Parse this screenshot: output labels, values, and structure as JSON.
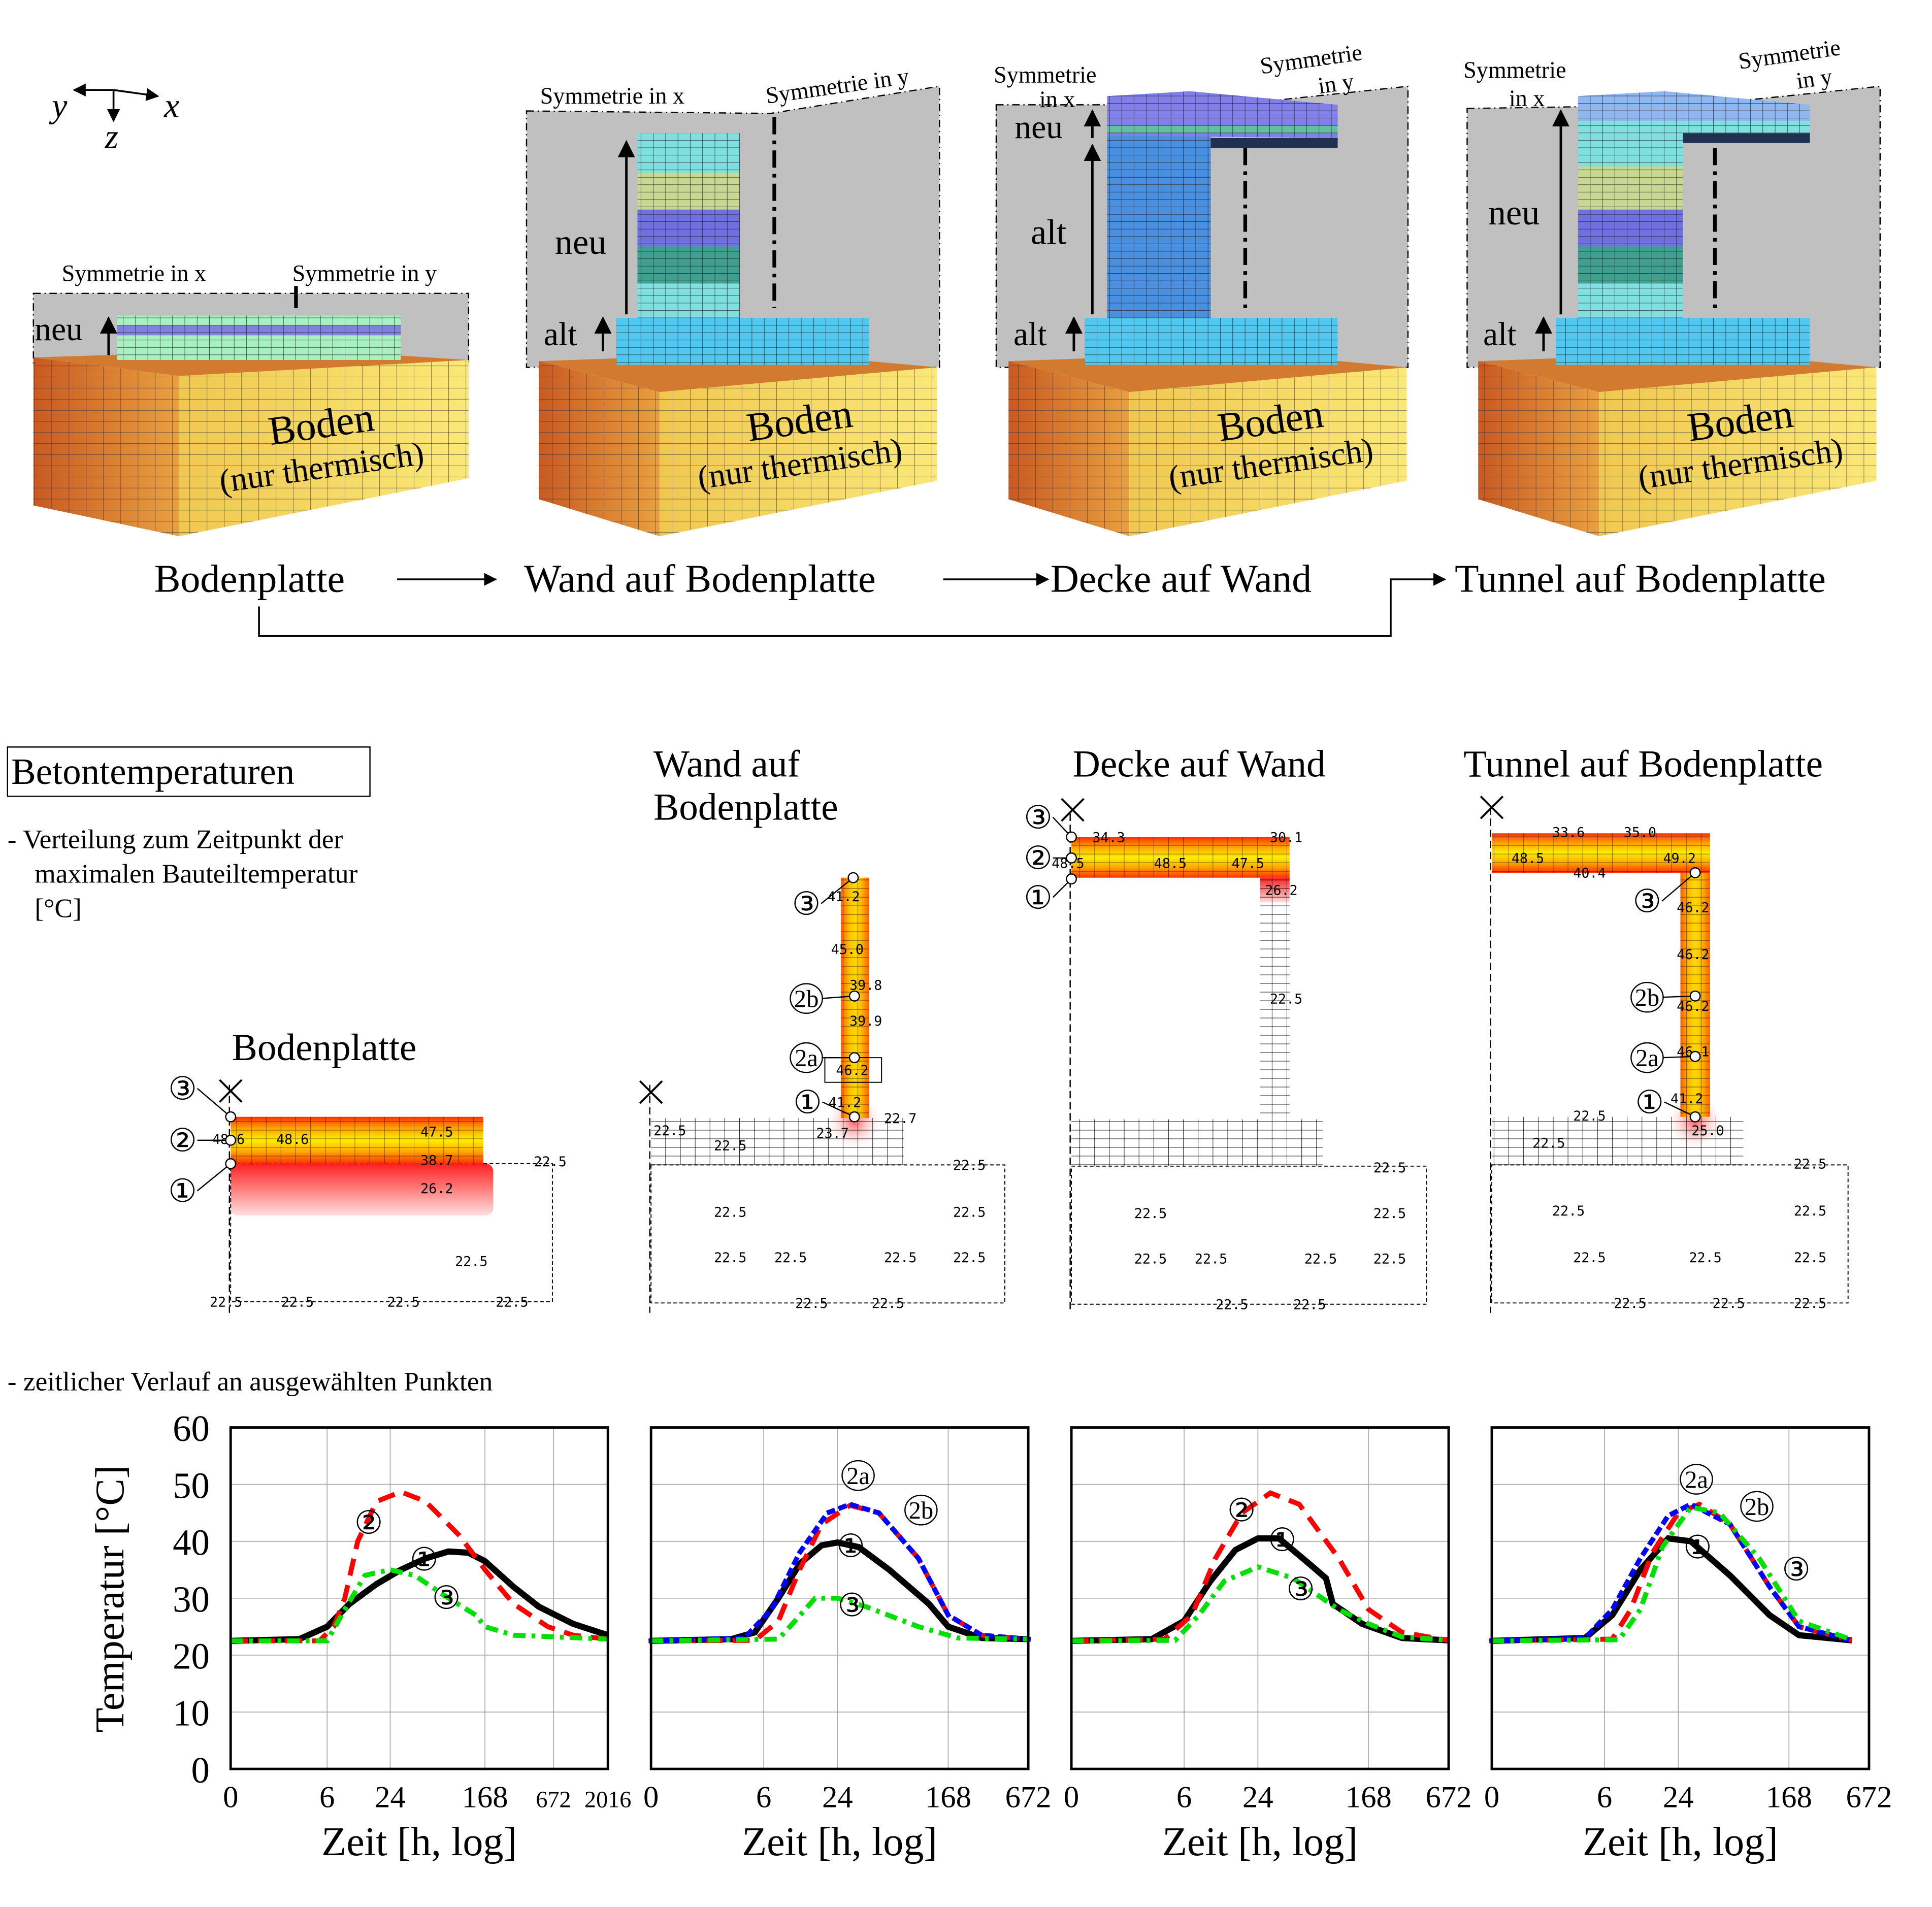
{
  "axes_glyph": {
    "x": "x",
    "y": "y",
    "z": "z"
  },
  "stages": [
    {
      "sym_x": "Symmetrie in x",
      "sym_y": "Symmetrie in y",
      "neu": "neu",
      "boden": "Boden",
      "boden_sub": "(nur thermisch)"
    },
    {
      "sym_x": "Symmetrie in x",
      "sym_y": "Symmetrie in y",
      "neu": "neu",
      "alt": "alt",
      "boden": "Boden",
      "boden_sub": "(nur thermisch)"
    },
    {
      "sym_x_lines": [
        "Symmetrie",
        "in x"
      ],
      "sym_y_lines": [
        "Symmetrie",
        "in y"
      ],
      "neu": "neu",
      "alt": "alt",
      "alt2": "alt",
      "boden": "Boden",
      "boden_sub": "(nur thermisch)"
    },
    {
      "sym_x_lines": [
        "Symmetrie",
        "in x"
      ],
      "sym_y_lines": [
        "Symmetrie",
        "in y"
      ],
      "neu": "neu",
      "alt": "alt",
      "boden": "Boden",
      "boden_sub": "(nur thermisch)"
    }
  ],
  "process": [
    "Bodenplatte",
    "Wand auf Bodenplatte",
    "Decke auf Wand",
    "Tunnel auf Bodenplatte"
  ],
  "section": {
    "title": "Betontemperaturen",
    "dist_text": [
      "- Verteilung zum Zeitpunkt der",
      "maximalen Bauteiltemperatur",
      "[°C]"
    ],
    "time_text": "- zeitlicher Verlauf an ausgewählten Punkten"
  },
  "distributions": [
    {
      "title": [
        "Bodenplatte"
      ],
      "points": [
        "③",
        "②",
        "①"
      ],
      "values": [
        "48.6",
        "48.6",
        "47.5",
        "38.7",
        "26.2",
        "22.5",
        "22.5",
        "22.5",
        "22.5",
        "22.5",
        "22.5"
      ]
    },
    {
      "title": [
        "Wand auf",
        "Bodenplatte"
      ],
      "points": [
        "③",
        "2b",
        "2a",
        "①"
      ],
      "values": [
        "41.2",
        "45.0",
        "39.8",
        "39.9",
        "46.2",
        "41.2",
        "22.7",
        "23.7",
        "22.5",
        "22.5",
        "22.5",
        "22.5",
        "22.5",
        "22.5",
        "22.5",
        "22.5",
        "22.5",
        "22.5",
        "22.5"
      ]
    },
    {
      "title": [
        "Decke auf Wand"
      ],
      "points": [
        "③",
        "②",
        "①"
      ],
      "values": [
        "34.3",
        "30.1",
        "48.5",
        "48.5",
        "47.5",
        "26.2",
        "22.5",
        "22.5",
        "22.5",
        "22.5",
        "22.5",
        "22.5",
        "22.5",
        "22.5",
        "22.5",
        "22.5"
      ]
    },
    {
      "title": [
        "Tunnel auf Bodenplatte"
      ],
      "points": [
        "③",
        "2b",
        "2a",
        "①"
      ],
      "values": [
        "33.6",
        "35.0",
        "48.5",
        "49.2",
        "40.4",
        "46.2",
        "46.2",
        "46.2",
        "46.1",
        "41.2",
        "25.0",
        "22.5",
        "22.5",
        "22.5",
        "22.5",
        "22.5",
        "22.5",
        "22.5",
        "22.5",
        "22.5",
        "22.5",
        "22.5"
      ]
    }
  ],
  "colors": {
    "series_1": "#000000",
    "series_2": "#ff0000",
    "series_2b": "#0000ff",
    "series_3": "#00e000",
    "heat_hot": "#ff2000",
    "heat_mid": "#ffa500",
    "heat_max": "#ffee00",
    "soil_left": "#d0682a",
    "soil_right": "#f5d860",
    "background_plane": "#c0c0c0"
  },
  "chart_data": [
    {
      "type": "line",
      "xscale": "log",
      "xlabel": "Zeit [h, log]",
      "ylabel": "Temperatur [°C]",
      "ylim": [
        0,
        60
      ],
      "yticks": [
        0,
        10,
        20,
        30,
        40,
        50,
        60
      ],
      "xticks": [
        0,
        6,
        24,
        168,
        672,
        2016
      ],
      "xlim": [
        0,
        2016
      ],
      "grid": true,
      "series": [
        {
          "name": "1",
          "style": "solid",
          "color": "#000000",
          "points": [
            [
              0,
              22.5
            ],
            [
              3,
              22.8
            ],
            [
              6,
              25
            ],
            [
              10,
              29
            ],
            [
              18,
              32.5
            ],
            [
              30,
              35
            ],
            [
              50,
              37
            ],
            [
              80,
              38.2
            ],
            [
              120,
              38
            ],
            [
              168,
              36.5
            ],
            [
              300,
              32
            ],
            [
              500,
              28.5
            ],
            [
              1000,
              25.5
            ],
            [
              2016,
              23.5
            ]
          ]
        },
        {
          "name": "2",
          "style": "dashed",
          "color": "#ff0000",
          "points": [
            [
              0,
              22.5
            ],
            [
              5,
              22.5
            ],
            [
              7,
              25
            ],
            [
              9,
              30
            ],
            [
              12,
              40
            ],
            [
              18,
              47
            ],
            [
              30,
              48.7
            ],
            [
              50,
              47
            ],
            [
              100,
              41
            ],
            [
              168,
              35
            ],
            [
              300,
              29
            ],
            [
              600,
              25
            ],
            [
              1000,
              23.5
            ],
            [
              2016,
              22.8
            ]
          ]
        },
        {
          "name": "3",
          "style": "dashdot",
          "color": "#00e000",
          "points": [
            [
              0,
              22.5
            ],
            [
              6,
              22.5
            ],
            [
              9,
              28
            ],
            [
              14,
              34
            ],
            [
              24,
              35
            ],
            [
              40,
              34
            ],
            [
              80,
              30
            ],
            [
              140,
              27
            ],
            [
              168,
              25
            ],
            [
              300,
              23.5
            ],
            [
              2016,
              22.8
            ]
          ]
        }
      ]
    },
    {
      "type": "line",
      "xscale": "log",
      "xlabel": "Zeit [h, log]",
      "ylim": [
        0,
        60
      ],
      "xticks": [
        0,
        6,
        24,
        168,
        672
      ],
      "xlim": [
        0,
        672
      ],
      "grid": true,
      "series": [
        {
          "name": "1",
          "style": "solid",
          "color": "#000000",
          "points": [
            [
              0,
              22.5
            ],
            [
              3,
              22.8
            ],
            [
              5,
              24
            ],
            [
              8,
              30
            ],
            [
              12,
              36
            ],
            [
              18,
              39.3
            ],
            [
              24,
              39.8
            ],
            [
              35,
              39
            ],
            [
              60,
              35
            ],
            [
              120,
              29
            ],
            [
              168,
              25
            ],
            [
              300,
              23
            ],
            [
              672,
              22.8
            ]
          ]
        },
        {
          "name": "2a",
          "style": "dashed",
          "color": "#ff0000",
          "points": [
            [
              0,
              22.5
            ],
            [
              5,
              22.6
            ],
            [
              8,
              26
            ],
            [
              12,
              35
            ],
            [
              18,
              43
            ],
            [
              30,
              46.3
            ],
            [
              50,
              45
            ],
            [
              100,
              37
            ],
            [
              168,
              27
            ],
            [
              300,
              23.5
            ],
            [
              672,
              22.8
            ]
          ]
        },
        {
          "name": "2b",
          "style": "dotted",
          "color": "#0000ff",
          "points": [
            [
              0,
              22.5
            ],
            [
              4,
              23
            ],
            [
              7,
              28
            ],
            [
              12,
              38
            ],
            [
              20,
              45
            ],
            [
              30,
              46.5
            ],
            [
              50,
              45
            ],
            [
              100,
              37
            ],
            [
              168,
              27
            ],
            [
              300,
              23.5
            ],
            [
              672,
              22.8
            ]
          ]
        },
        {
          "name": "3",
          "style": "dashdot",
          "color": "#00e000",
          "points": [
            [
              0,
              22.5
            ],
            [
              8,
              22.8
            ],
            [
              11,
              26
            ],
            [
              16,
              30
            ],
            [
              24,
              30
            ],
            [
              40,
              28.5
            ],
            [
              100,
              25
            ],
            [
              200,
              23
            ],
            [
              672,
              22.8
            ]
          ]
        }
      ]
    },
    {
      "type": "line",
      "xscale": "log",
      "xlabel": "Zeit [h, log]",
      "ylim": [
        0,
        60
      ],
      "xticks": [
        0,
        6,
        24,
        168,
        672
      ],
      "xlim": [
        0,
        672
      ],
      "grid": true,
      "series": [
        {
          "name": "1",
          "style": "solid",
          "color": "#000000",
          "points": [
            [
              0,
              22.5
            ],
            [
              3,
              22.8
            ],
            [
              6,
              26
            ],
            [
              10,
              33
            ],
            [
              16,
              38.5
            ],
            [
              24,
              40.5
            ],
            [
              35,
              40.5
            ],
            [
              60,
              36
            ],
            [
              80,
              33.5
            ],
            [
              90,
              29
            ],
            [
              150,
              25.5
            ],
            [
              300,
              23
            ],
            [
              672,
              22.6
            ]
          ]
        },
        {
          "name": "2",
          "style": "dashed",
          "color": "#ff0000",
          "points": [
            [
              0,
              22.5
            ],
            [
              4,
              22.8
            ],
            [
              7,
              27
            ],
            [
              11,
              37
            ],
            [
              18,
              45
            ],
            [
              30,
              48.5
            ],
            [
              50,
              46.5
            ],
            [
              100,
              37
            ],
            [
              168,
              28
            ],
            [
              300,
              24
            ],
            [
              672,
              22.6
            ]
          ]
        },
        {
          "name": "3",
          "style": "dashdot",
          "color": "#00e000",
          "points": [
            [
              0,
              22.5
            ],
            [
              5,
              22.6
            ],
            [
              8,
              27
            ],
            [
              13,
              33
            ],
            [
              24,
              35.5
            ],
            [
              45,
              33.5
            ],
            [
              100,
              28
            ],
            [
              168,
              25.5
            ],
            [
              300,
              23.2
            ],
            [
              672,
              22.6
            ]
          ]
        }
      ]
    },
    {
      "type": "line",
      "xscale": "log",
      "xlabel": "Zeit [h, log]",
      "ylim": [
        0,
        60
      ],
      "xticks": [
        0,
        6,
        24,
        168,
        672
      ],
      "xlim": [
        0,
        672
      ],
      "grid": true,
      "series": [
        {
          "name": "1",
          "style": "solid",
          "color": "#000000",
          "points": [
            [
              0,
              22.5
            ],
            [
              4,
              23
            ],
            [
              7,
              27
            ],
            [
              12,
              35
            ],
            [
              20,
              40.5
            ],
            [
              30,
              40
            ],
            [
              60,
              34
            ],
            [
              120,
              27
            ],
            [
              200,
              23.5
            ],
            [
              500,
              22.6
            ]
          ]
        },
        {
          "name": "2a",
          "style": "dashed",
          "color": "#ff0000",
          "points": [
            [
              0,
              22.5
            ],
            [
              7,
              22.8
            ],
            [
              10,
              28
            ],
            [
              15,
              38
            ],
            [
              24,
              45
            ],
            [
              35,
              46.5
            ],
            [
              60,
              43
            ],
            [
              120,
              32
            ],
            [
              200,
              25
            ],
            [
              500,
              22.6
            ]
          ]
        },
        {
          "name": "2b",
          "style": "dotted",
          "color": "#0000ff",
          "points": [
            [
              0,
              22.5
            ],
            [
              4,
              23
            ],
            [
              7,
              28
            ],
            [
              12,
              37
            ],
            [
              20,
              44.5
            ],
            [
              30,
              46.5
            ],
            [
              60,
              43
            ],
            [
              120,
              32
            ],
            [
              200,
              25
            ],
            [
              500,
              22.6
            ]
          ]
        },
        {
          "name": "3",
          "style": "dashdot",
          "color": "#00e000",
          "points": [
            [
              0,
              22.5
            ],
            [
              8,
              22.7
            ],
            [
              12,
              28
            ],
            [
              18,
              39
            ],
            [
              30,
              46
            ],
            [
              50,
              45
            ],
            [
              100,
              37
            ],
            [
              200,
              26
            ],
            [
              500,
              22.7
            ]
          ]
        }
      ]
    }
  ],
  "chart_labels": [
    [
      "②",
      "①",
      "③"
    ],
    [
      "2a",
      "2b",
      "①",
      "③"
    ],
    [
      "②",
      "①",
      "③"
    ],
    [
      "2a",
      "2b",
      "①",
      "③"
    ]
  ]
}
